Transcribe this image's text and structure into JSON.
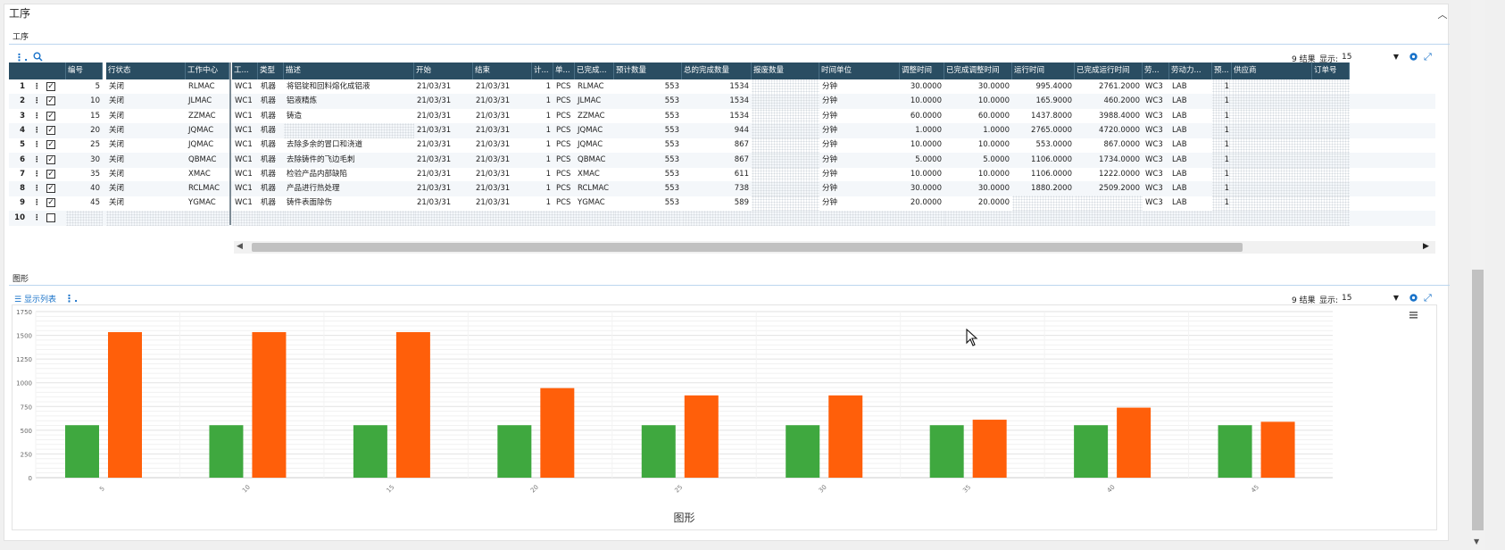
{
  "page": {
    "title": "工序",
    "collapse_icon": "chevron-up-icon"
  },
  "table_section": {
    "label": "工序",
    "summary": "9 结果",
    "display_label": "显示:",
    "page_size": "15",
    "columns": [
      "编号",
      "行状态",
      "工作中心",
      "工...",
      "类型",
      "描述",
      "开始",
      "结束",
      "计...",
      "单...",
      "已完成...",
      "预计数量",
      "总的完成数量",
      "报废数量",
      "时间单位",
      "调整时间",
      "已完成调整时间",
      "运行时间",
      "已完成运行时间",
      "劳...",
      "劳动力...",
      "预...",
      "供应商",
      "订单号"
    ],
    "rows": [
      {
        "n": "1",
        "checked": true,
        "id": "5",
        "status": "关闭",
        "wc": "RLMAC",
        "w": "WC1",
        "type": "机器",
        "desc": "将铝锭和回料熔化成铝液",
        "start": "21/03/31",
        "end": "21/03/31",
        "cnt": "1",
        "unit": "PCS",
        "done_wc": "RLMAC",
        "plan": "553",
        "total": "1534",
        "scrap": "",
        "time_unit": "分钟",
        "setup": "30.0000",
        "setup_done": "30.0000",
        "run": "995.4000",
        "run_done": "2761.2000",
        "lab": "WC3",
        "labor": "LAB",
        "pre": "1"
      },
      {
        "n": "2",
        "checked": true,
        "id": "10",
        "status": "关闭",
        "wc": "JLMAC",
        "w": "WC1",
        "type": "机器",
        "desc": "铝液精炼",
        "start": "21/03/31",
        "end": "21/03/31",
        "cnt": "1",
        "unit": "PCS",
        "done_wc": "JLMAC",
        "plan": "553",
        "total": "1534",
        "scrap": "",
        "time_unit": "分钟",
        "setup": "10.0000",
        "setup_done": "10.0000",
        "run": "165.9000",
        "run_done": "460.2000",
        "lab": "WC3",
        "labor": "LAB",
        "pre": "1"
      },
      {
        "n": "3",
        "checked": true,
        "id": "15",
        "status": "关闭",
        "wc": "ZZMAC",
        "w": "WC1",
        "type": "机器",
        "desc": "铸造",
        "start": "21/03/31",
        "end": "21/03/31",
        "cnt": "1",
        "unit": "PCS",
        "done_wc": "ZZMAC",
        "plan": "553",
        "total": "1534",
        "scrap": "",
        "time_unit": "分钟",
        "setup": "60.0000",
        "setup_done": "60.0000",
        "run": "1437.8000",
        "run_done": "3988.4000",
        "lab": "WC3",
        "labor": "LAB",
        "pre": "1"
      },
      {
        "n": "4",
        "checked": true,
        "id": "20",
        "status": "关闭",
        "wc": "JQMAC",
        "w": "WC1",
        "type": "机器",
        "desc": "",
        "start": "21/03/31",
        "end": "21/03/31",
        "cnt": "1",
        "unit": "PCS",
        "done_wc": "JQMAC",
        "plan": "553",
        "total": "944",
        "scrap": "",
        "time_unit": "分钟",
        "setup": "1.0000",
        "setup_done": "1.0000",
        "run": "2765.0000",
        "run_done": "4720.0000",
        "lab": "WC3",
        "labor": "LAB",
        "pre": "1"
      },
      {
        "n": "5",
        "checked": true,
        "id": "25",
        "status": "关闭",
        "wc": "JQMAC",
        "w": "WC1",
        "type": "机器",
        "desc": "去除多余的冒口和浇道",
        "start": "21/03/31",
        "end": "21/03/31",
        "cnt": "1",
        "unit": "PCS",
        "done_wc": "JQMAC",
        "plan": "553",
        "total": "867",
        "scrap": "",
        "time_unit": "分钟",
        "setup": "10.0000",
        "setup_done": "10.0000",
        "run": "553.0000",
        "run_done": "867.0000",
        "lab": "WC3",
        "labor": "LAB",
        "pre": "1"
      },
      {
        "n": "6",
        "checked": true,
        "id": "30",
        "status": "关闭",
        "wc": "QBMAC",
        "w": "WC1",
        "type": "机器",
        "desc": "去除铸件的飞边毛刺",
        "start": "21/03/31",
        "end": "21/03/31",
        "cnt": "1",
        "unit": "PCS",
        "done_wc": "QBMAC",
        "plan": "553",
        "total": "867",
        "scrap": "",
        "time_unit": "分钟",
        "setup": "5.0000",
        "setup_done": "5.0000",
        "run": "1106.0000",
        "run_done": "1734.0000",
        "lab": "WC3",
        "labor": "LAB",
        "pre": "1"
      },
      {
        "n": "7",
        "checked": true,
        "id": "35",
        "status": "关闭",
        "wc": "XMAC",
        "w": "WC1",
        "type": "机器",
        "desc": "检验产品内部缺陷",
        "start": "21/03/31",
        "end": "21/03/31",
        "cnt": "1",
        "unit": "PCS",
        "done_wc": "XMAC",
        "plan": "553",
        "total": "611",
        "scrap": "",
        "time_unit": "分钟",
        "setup": "10.0000",
        "setup_done": "10.0000",
        "run": "1106.0000",
        "run_done": "1222.0000",
        "lab": "WC3",
        "labor": "LAB",
        "pre": "1"
      },
      {
        "n": "8",
        "checked": true,
        "id": "40",
        "status": "关闭",
        "wc": "RCLMAC",
        "w": "WC1",
        "type": "机器",
        "desc": "产品进行热处理",
        "start": "21/03/31",
        "end": "21/03/31",
        "cnt": "1",
        "unit": "PCS",
        "done_wc": "RCLMAC",
        "plan": "553",
        "total": "738",
        "scrap": "",
        "time_unit": "分钟",
        "setup": "30.0000",
        "setup_done": "30.0000",
        "run": "1880.2000",
        "run_done": "2509.2000",
        "lab": "WC3",
        "labor": "LAB",
        "pre": "1"
      },
      {
        "n": "9",
        "checked": true,
        "id": "45",
        "status": "关闭",
        "wc": "YGMAC",
        "w": "WC1",
        "type": "机器",
        "desc": "铸件表面除伤",
        "start": "21/03/31",
        "end": "21/03/31",
        "cnt": "1",
        "unit": "PCS",
        "done_wc": "YGMAC",
        "plan": "553",
        "total": "589",
        "scrap": "",
        "time_unit": "分钟",
        "setup": "20.0000",
        "setup_done": "20.0000",
        "run": "",
        "run_done": "",
        "lab": "WC3",
        "labor": "LAB",
        "pre": "1"
      },
      {
        "n": "10",
        "checked": false,
        "id": "",
        "status": "",
        "wc": "",
        "w": "",
        "type": "",
        "desc": "",
        "start": "",
        "end": "",
        "cnt": "",
        "unit": "",
        "done_wc": "",
        "plan": "",
        "total": "",
        "scrap": "",
        "time_unit": "",
        "setup": "",
        "setup_done": "",
        "run": "",
        "run_done": "",
        "lab": "",
        "labor": "",
        "pre": ""
      }
    ]
  },
  "chart_section": {
    "label": "图形",
    "list_button": "显示列表",
    "summary": "9 结果",
    "display_label": "显示:",
    "page_size": "15"
  },
  "chart_data": {
    "type": "bar",
    "categories": [
      "5",
      "10",
      "15",
      "20",
      "25",
      "30",
      "35",
      "40",
      "45"
    ],
    "series": [
      {
        "values": [
          553,
          553,
          553,
          553,
          553,
          553,
          553,
          553,
          553
        ],
        "color": "#3fa83f"
      },
      {
        "values": [
          1534,
          1534,
          1534,
          944,
          867,
          867,
          611,
          738,
          589
        ],
        "color": "#ff5f0a"
      }
    ],
    "xlabel": "图形",
    "ylim": [
      0,
      1750
    ],
    "yticks": [
      "0",
      "250",
      "500",
      "750",
      "1000",
      "1250",
      "1500",
      "1750"
    ],
    "grid": true
  },
  "colors": {
    "header_bg": "#2a4d62",
    "accent": "#1a73c9"
  }
}
